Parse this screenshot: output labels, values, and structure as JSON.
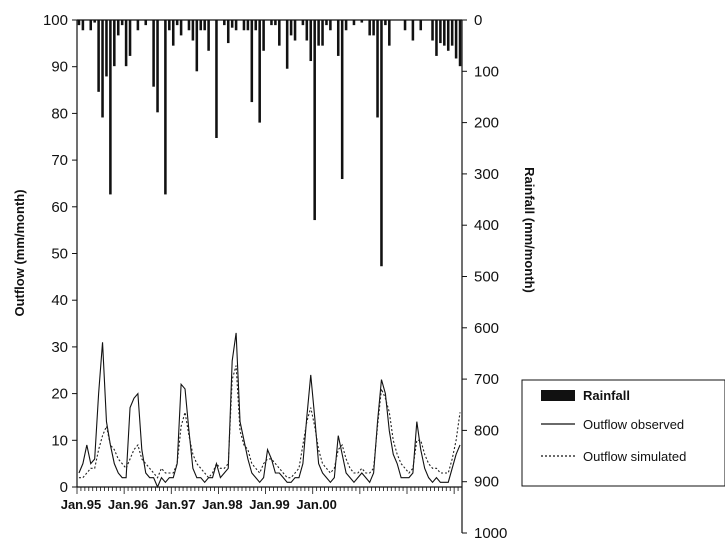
{
  "chart_data": {
    "type": "bar+line",
    "title": "",
    "y_left": {
      "label": "Outflow (mm/month)",
      "lim": [
        0,
        100
      ],
      "ticks": [
        0,
        10,
        20,
        30,
        40,
        50,
        60,
        70,
        80,
        90,
        100
      ]
    },
    "y_right": {
      "label": "Rainfall (mm/month)",
      "lim": [
        0,
        1000
      ],
      "inverted": true,
      "ticks": [
        0,
        100,
        200,
        300,
        400,
        500,
        600,
        700,
        800,
        900,
        1000
      ]
    },
    "x": {
      "start_month": "Jan.95",
      "tick_labels": [
        "Jan.95",
        "Jan.96",
        "Jan.97",
        "Jan.98",
        "Jan.99",
        "Jan.00"
      ]
    },
    "grid": false,
    "legend_position": "right",
    "legend": {
      "rainfall": "Rainfall",
      "observed": "Outflow observed",
      "simulated": "Outflow simulated"
    },
    "rainfall": [
      10,
      20,
      0,
      20,
      5,
      140,
      190,
      110,
      340,
      90,
      30,
      10,
      90,
      70,
      0,
      20,
      0,
      10,
      0,
      130,
      180,
      0,
      340,
      20,
      50,
      10,
      30,
      0,
      20,
      40,
      100,
      20,
      20,
      60,
      0,
      230,
      0,
      10,
      45,
      15,
      20,
      0,
      20,
      20,
      160,
      20,
      200,
      60,
      0,
      10,
      10,
      50,
      0,
      95,
      30,
      40,
      0,
      10,
      40,
      80,
      390,
      50,
      50,
      10,
      20,
      0,
      70,
      310,
      20,
      0,
      10,
      0,
      5,
      0,
      30,
      30,
      190,
      480,
      10,
      50,
      0,
      0,
      0,
      20,
      0,
      40,
      0,
      20,
      0,
      0,
      40,
      70,
      45,
      50,
      60,
      50,
      75,
      90
    ],
    "series": [
      {
        "name": "Outflow observed",
        "values": [
          3,
          5,
          9,
          5,
          6,
          20,
          31,
          14,
          9,
          5,
          3,
          2,
          2,
          17,
          19,
          20,
          8,
          3,
          2,
          2,
          0,
          2,
          1,
          2,
          2,
          5,
          22,
          21,
          12,
          4,
          2,
          2,
          1,
          2,
          2,
          5,
          2,
          3,
          4,
          27,
          33,
          14,
          10,
          6,
          3,
          2,
          1,
          2,
          8,
          6,
          3,
          3,
          2,
          1,
          1,
          2,
          2,
          5,
          15,
          24,
          15,
          5,
          3,
          2,
          1,
          2,
          11,
          7,
          3,
          2,
          1,
          2,
          3,
          2,
          1,
          3,
          14,
          23,
          20,
          12,
          7,
          5,
          2,
          2,
          2,
          3,
          14,
          8,
          4,
          2,
          1,
          2,
          1,
          1,
          1,
          4,
          7,
          9
        ]
      },
      {
        "name": "Outflow simulated",
        "values": [
          2,
          2,
          3,
          4,
          4,
          8,
          11,
          13,
          9,
          8,
          6,
          5,
          4,
          6,
          8,
          9,
          6,
          5,
          4,
          3,
          2,
          4,
          3,
          3,
          3,
          5,
          13,
          16,
          11,
          7,
          5,
          4,
          3,
          2,
          3,
          5,
          4,
          4,
          5,
          23,
          26,
          12,
          9,
          8,
          5,
          4,
          3,
          5,
          6,
          6,
          5,
          4,
          3,
          2,
          2,
          3,
          4,
          9,
          14,
          17,
          13,
          8,
          5,
          4,
          3,
          4,
          8,
          9,
          6,
          4,
          3,
          3,
          4,
          3,
          3,
          4,
          13,
          21,
          19,
          16,
          10,
          7,
          5,
          4,
          3,
          4,
          10,
          10,
          7,
          5,
          4,
          4,
          3,
          3,
          3,
          6,
          10,
          16
        ]
      }
    ]
  }
}
